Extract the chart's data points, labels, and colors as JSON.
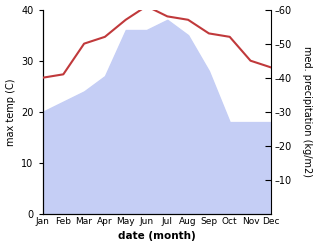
{
  "months": [
    "Jan",
    "Feb",
    "Mar",
    "Apr",
    "May",
    "Jun",
    "Jul",
    "Aug",
    "Sep",
    "Oct",
    "Nov",
    "Dec"
  ],
  "temp": [
    20,
    22,
    24,
    27,
    36,
    36,
    38,
    35,
    28,
    18,
    18,
    18
  ],
  "precip": [
    40,
    41,
    50,
    52,
    57,
    61,
    58,
    57,
    53,
    52,
    45,
    43
  ],
  "precip_color": "#c0393b",
  "temp_fill_color": "#c5cef5",
  "xlabel": "date (month)",
  "ylabel_left": "max temp (C)",
  "ylabel_right": "med. precipitation (kg/m2)",
  "ylim_left": [
    0,
    40
  ],
  "ylim_right": [
    0,
    60
  ],
  "yticks_left": [
    0,
    10,
    20,
    30,
    40
  ],
  "yticks_right": [
    10,
    20,
    30,
    40,
    50,
    60
  ],
  "bg_color": "#ffffff"
}
